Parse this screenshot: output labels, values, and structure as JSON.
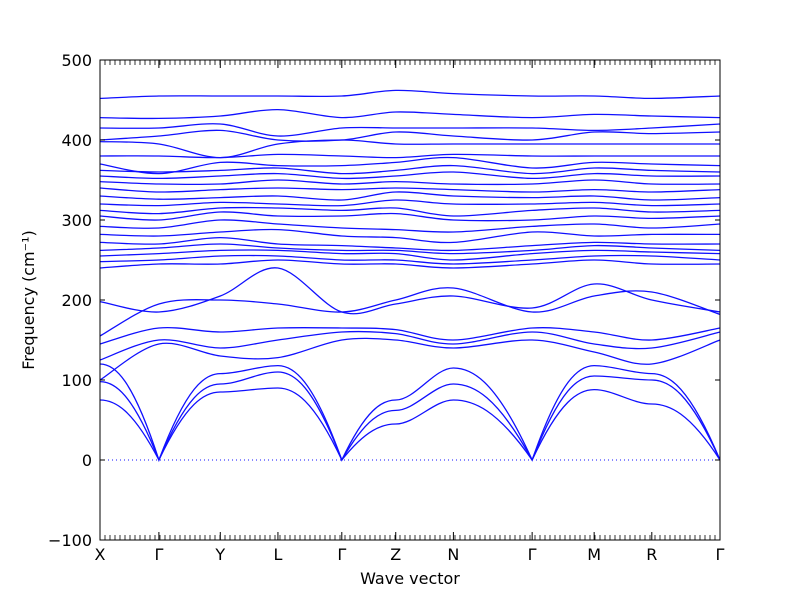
{
  "chart_data": {
    "type": "line",
    "xlabel": "Wave vector",
    "ylabel": "Frequency (cm⁻¹)",
    "ylim": [
      -100,
      500
    ],
    "yticks": [
      -100,
      0,
      100,
      200,
      300,
      400,
      500
    ],
    "ytick_labels": [
      "−100",
      "0",
      "100",
      "200",
      "300",
      "400",
      "500"
    ],
    "high_symmetry_points": [
      {
        "label": "X",
        "x": 0.0
      },
      {
        "label": "Γ",
        "x": 0.095
      },
      {
        "label": "Y",
        "x": 0.194
      },
      {
        "label": "L",
        "x": 0.287
      },
      {
        "label": "Γ",
        "x": 0.39
      },
      {
        "label": "Z",
        "x": 0.477
      },
      {
        "label": "N",
        "x": 0.57
      },
      {
        "label": "Γ",
        "x": 0.697
      },
      {
        "label": "M",
        "x": 0.797
      },
      {
        "label": "R",
        "x": 0.89
      },
      {
        "label": "Γ",
        "x": 1.0
      }
    ],
    "reference_line": {
      "y": 0,
      "style": "dotted"
    },
    "line_color": "#1010ff",
    "grid": false,
    "acoustic_bands": [
      [
        [
          0,
          75
        ],
        [
          0.095,
          0
        ],
        [
          0.194,
          85
        ],
        [
          0.287,
          90
        ],
        [
          0.39,
          0
        ],
        [
          0.477,
          45
        ],
        [
          0.57,
          75
        ],
        [
          0.697,
          0
        ],
        [
          0.797,
          88
        ],
        [
          0.89,
          70
        ],
        [
          1.0,
          0
        ]
      ],
      [
        [
          0,
          98
        ],
        [
          0.095,
          0
        ],
        [
          0.194,
          95
        ],
        [
          0.287,
          110
        ],
        [
          0.39,
          0
        ],
        [
          0.477,
          62
        ],
        [
          0.57,
          95
        ],
        [
          0.697,
          0
        ],
        [
          0.797,
          105
        ],
        [
          0.89,
          100
        ],
        [
          1.0,
          0
        ]
      ],
      [
        [
          0,
          120
        ],
        [
          0.095,
          0
        ],
        [
          0.194,
          108
        ],
        [
          0.287,
          118
        ],
        [
          0.39,
          0
        ],
        [
          0.477,
          75
        ],
        [
          0.57,
          115
        ],
        [
          0.697,
          0
        ],
        [
          0.797,
          118
        ],
        [
          0.89,
          108
        ],
        [
          1.0,
          0
        ]
      ]
    ],
    "optical_bands": [
      [
        100,
        145,
        130,
        128,
        150,
        150,
        140,
        150,
        135,
        120,
        150
      ],
      [
        125,
        150,
        140,
        150,
        160,
        158,
        145,
        160,
        145,
        140,
        160
      ],
      [
        145,
        165,
        160,
        165,
        165,
        163,
        150,
        165,
        160,
        150,
        165
      ],
      [
        155,
        195,
        200,
        195,
        185,
        200,
        215,
        185,
        205,
        210,
        182
      ],
      [
        198,
        185,
        205,
        240,
        185,
        195,
        205,
        190,
        220,
        200,
        185
      ],
      [
        240,
        245,
        245,
        250,
        245,
        245,
        240,
        245,
        250,
        245,
        245
      ],
      [
        248,
        250,
        255,
        255,
        250,
        250,
        245,
        250,
        255,
        255,
        250
      ],
      [
        255,
        258,
        262,
        262,
        258,
        258,
        250,
        258,
        262,
        260,
        258
      ],
      [
        262,
        265,
        270,
        265,
        262,
        262,
        258,
        262,
        268,
        265,
        262
      ],
      [
        272,
        270,
        278,
        270,
        268,
        265,
        262,
        268,
        272,
        270,
        270
      ],
      [
        282,
        280,
        285,
        288,
        280,
        278,
        272,
        285,
        280,
        282,
        282
      ],
      [
        292,
        290,
        300,
        295,
        290,
        288,
        285,
        292,
        295,
        290,
        295
      ],
      [
        305,
        300,
        310,
        305,
        305,
        308,
        300,
        300,
        305,
        302,
        305
      ],
      [
        312,
        308,
        315,
        315,
        312,
        315,
        305,
        312,
        315,
        310,
        312
      ],
      [
        320,
        318,
        322,
        320,
        318,
        325,
        320,
        320,
        322,
        318,
        320
      ],
      [
        330,
        326,
        328,
        330,
        325,
        335,
        330,
        328,
        330,
        325,
        328
      ],
      [
        340,
        335,
        338,
        340,
        338,
        340,
        338,
        335,
        338,
        335,
        338
      ],
      [
        348,
        345,
        345,
        350,
        345,
        348,
        345,
        345,
        350,
        345,
        345
      ],
      [
        355,
        352,
        355,
        358,
        352,
        355,
        360,
        352,
        358,
        355,
        355
      ],
      [
        362,
        360,
        362,
        365,
        358,
        362,
        368,
        358,
        365,
        362,
        360
      ],
      [
        370,
        358,
        372,
        368,
        368,
        372,
        378,
        365,
        372,
        370,
        368
      ],
      [
        380,
        380,
        378,
        382,
        380,
        378,
        382,
        380,
        380,
        380,
        380
      ],
      [
        398,
        395,
        378,
        395,
        400,
        395,
        395,
        395,
        395,
        395,
        395
      ],
      [
        400,
        405,
        412,
        400,
        400,
        410,
        405,
        400,
        410,
        408,
        410
      ],
      [
        415,
        415,
        420,
        405,
        415,
        415,
        415,
        415,
        412,
        415,
        420
      ],
      [
        428,
        427,
        430,
        438,
        428,
        435,
        432,
        428,
        432,
        430,
        428
      ],
      [
        452,
        455,
        455,
        455,
        455,
        462,
        458,
        455,
        455,
        452,
        455
      ]
    ]
  }
}
